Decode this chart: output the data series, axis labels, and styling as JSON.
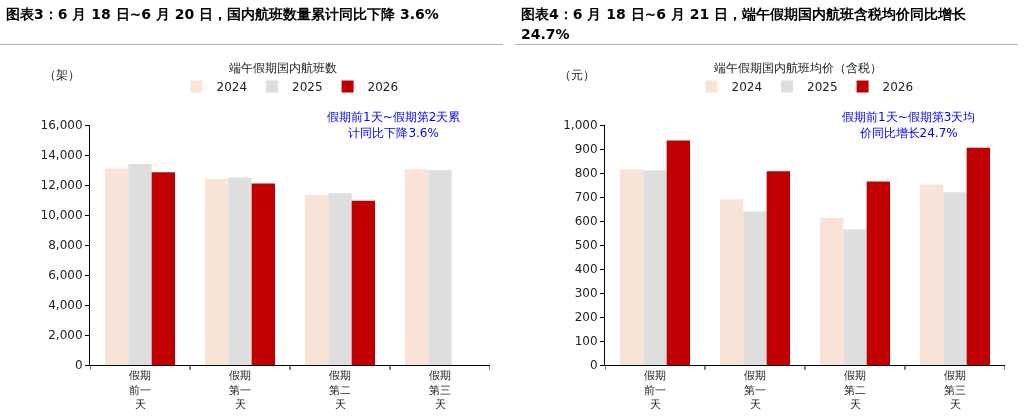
{
  "chart_data": [
    {
      "type": "bar",
      "title": "图表3：6 月 18 日~6 月 20 日，国内航班数量累计同比下降 3.6%",
      "subtitle": "端午假期国内航班数",
      "ylabel": "（架）",
      "categories": [
        "假期前一天",
        "假期第一天",
        "假期第二天",
        "假期第三天"
      ],
      "series": [
        {
          "name": "2024",
          "color": "#f8e3d6",
          "values": [
            13100,
            12400,
            11350,
            13050
          ]
        },
        {
          "name": "2025",
          "color": "#dedede",
          "values": [
            13400,
            12500,
            11450,
            13000
          ]
        },
        {
          "name": "2026",
          "color": "#c00000",
          "values": [
            12850,
            12100,
            10950,
            null
          ]
        }
      ],
      "ylim": [
        0,
        16000
      ],
      "yticks": [
        {
          "value": 0,
          "label": "0"
        },
        {
          "value": 2000,
          "label": "2,000"
        },
        {
          "value": 4000,
          "label": "4,000"
        },
        {
          "value": 6000,
          "label": "6,000"
        },
        {
          "value": 8000,
          "label": "8,000"
        },
        {
          "value": 10000,
          "label": "10,000"
        },
        {
          "value": 12000,
          "label": "12,000"
        },
        {
          "value": 14000,
          "label": "14,000"
        },
        {
          "value": 16000,
          "label": "16,000"
        }
      ],
      "grid": false,
      "legend": "top",
      "annotations": [
        "假期前1天~假期第2天累计同比下降3.6%"
      ]
    },
    {
      "type": "bar",
      "title": "图表4：6 月 18 日~6 月 21 日，端午假期国内航班含税均价同比增长 24.7%",
      "subtitle": "端午假期国内航班均价（含税）",
      "ylabel": "（元）",
      "categories": [
        "假期前一天",
        "假期第一天",
        "假期第二天",
        "假期第三天"
      ],
      "series": [
        {
          "name": "2024",
          "color": "#f8e3d6",
          "values": [
            815,
            690,
            612,
            752
          ]
        },
        {
          "name": "2025",
          "color": "#dedede",
          "values": [
            810,
            640,
            565,
            720
          ]
        },
        {
          "name": "2026",
          "color": "#c00000",
          "values": [
            935,
            807,
            765,
            905
          ]
        }
      ],
      "ylim": [
        0,
        1000
      ],
      "yticks": [
        0,
        100,
        200,
        300,
        400,
        500,
        600,
        700,
        800,
        900,
        {
          "value": 1000,
          "label": "1,000"
        }
      ],
      "grid": false,
      "legend": "top",
      "annotations": [
        "假期前1天~假期第3天均价同比增长24.7%"
      ]
    }
  ]
}
